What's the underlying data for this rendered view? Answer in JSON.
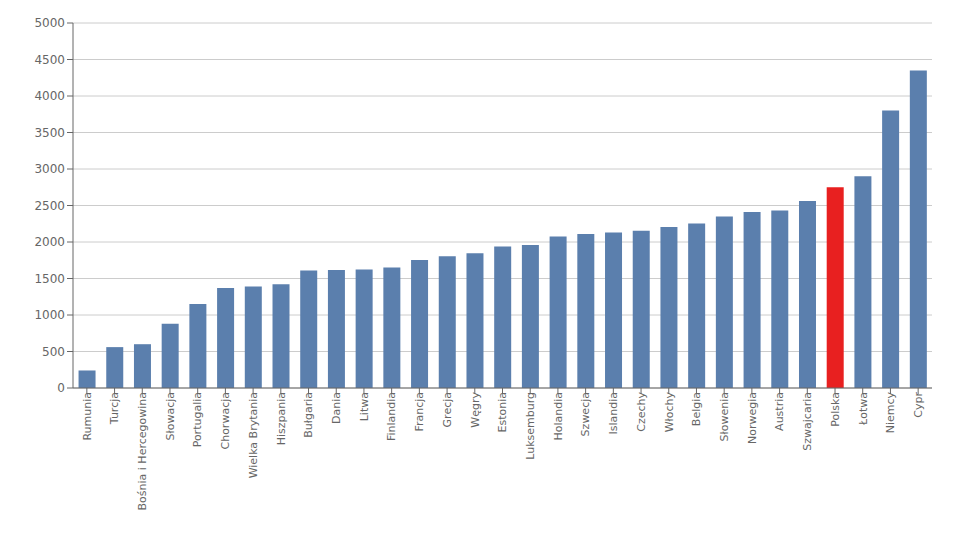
{
  "chart_data": {
    "type": "bar",
    "categories": [
      "Rumunia",
      "Turcja",
      "Bośnia i Hercegowina",
      "Słowacja",
      "Portugalia",
      "Chorwacja",
      "Wielka Brytania",
      "Hiszpania",
      "Bułgaria",
      "Dania",
      "Litwa",
      "Finlandia",
      "Francja",
      "Grecja",
      "Węgry",
      "Estonia",
      "Luksemburg",
      "Holandia",
      "Szwecja",
      "Islandia",
      "Czechy",
      "Włochy",
      "Belgia",
      "Słowenia",
      "Norwegia",
      "Austria",
      "Szwajcaria",
      "Polska",
      "Łotwa",
      "Niemcy",
      "Cypr"
    ],
    "values": [
      240,
      560,
      600,
      880,
      1150,
      1370,
      1390,
      1420,
      1610,
      1615,
      1625,
      1650,
      1755,
      1805,
      1845,
      1940,
      1960,
      2075,
      2110,
      2130,
      2155,
      2205,
      2255,
      2350,
      2410,
      2430,
      2560,
      2750,
      2900,
      3800,
      4350
    ],
    "colors": [
      "#5b7fad",
      "#5b7fad",
      "#5b7fad",
      "#5b7fad",
      "#5b7fad",
      "#5b7fad",
      "#5b7fad",
      "#5b7fad",
      "#5b7fad",
      "#5b7fad",
      "#5b7fad",
      "#5b7fad",
      "#5b7fad",
      "#5b7fad",
      "#5b7fad",
      "#5b7fad",
      "#5b7fad",
      "#5b7fad",
      "#5b7fad",
      "#5b7fad",
      "#5b7fad",
      "#5b7fad",
      "#5b7fad",
      "#5b7fad",
      "#5b7fad",
      "#5b7fad",
      "#5b7fad",
      "#e82020",
      "#5b7fad",
      "#5b7fad",
      "#5b7fad"
    ],
    "ylim": [
      0,
      5000
    ],
    "yticks": [
      0,
      500,
      1000,
      1500,
      2000,
      2500,
      3000,
      3500,
      4000,
      4500,
      5000
    ],
    "grid": true
  }
}
